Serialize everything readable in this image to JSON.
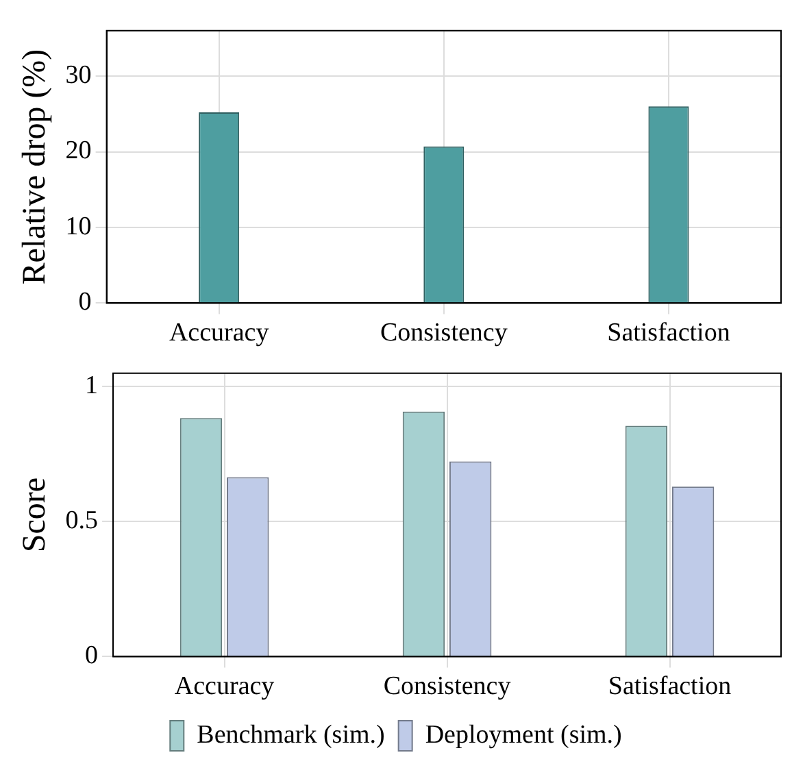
{
  "chart_data": [
    {
      "type": "bar",
      "ylabel": "Relative drop (%)",
      "categories": [
        "Accuracy",
        "Consistency",
        "Satisfaction"
      ],
      "values": [
        25.2,
        20.7,
        26.0
      ],
      "color": "#4e9ea0",
      "ylim": [
        0,
        36
      ],
      "yticks": [
        0,
        10,
        20,
        30
      ],
      "grid": true
    },
    {
      "type": "bar",
      "ylabel": "Score",
      "categories": [
        "Accuracy",
        "Consistency",
        "Satisfaction"
      ],
      "series": [
        {
          "name": "Benchmark (sim.)",
          "color": "#a6d0d0",
          "values": [
            0.884,
            0.908,
            0.855
          ]
        },
        {
          "name": "Deployment (sim.)",
          "color": "#bfcbe8",
          "values": [
            0.665,
            0.723,
            0.63
          ]
        }
      ],
      "ylim": [
        0,
        1.05
      ],
      "yticks": [
        0,
        0.5,
        1
      ],
      "grid": true,
      "legend": "bottom"
    }
  ]
}
